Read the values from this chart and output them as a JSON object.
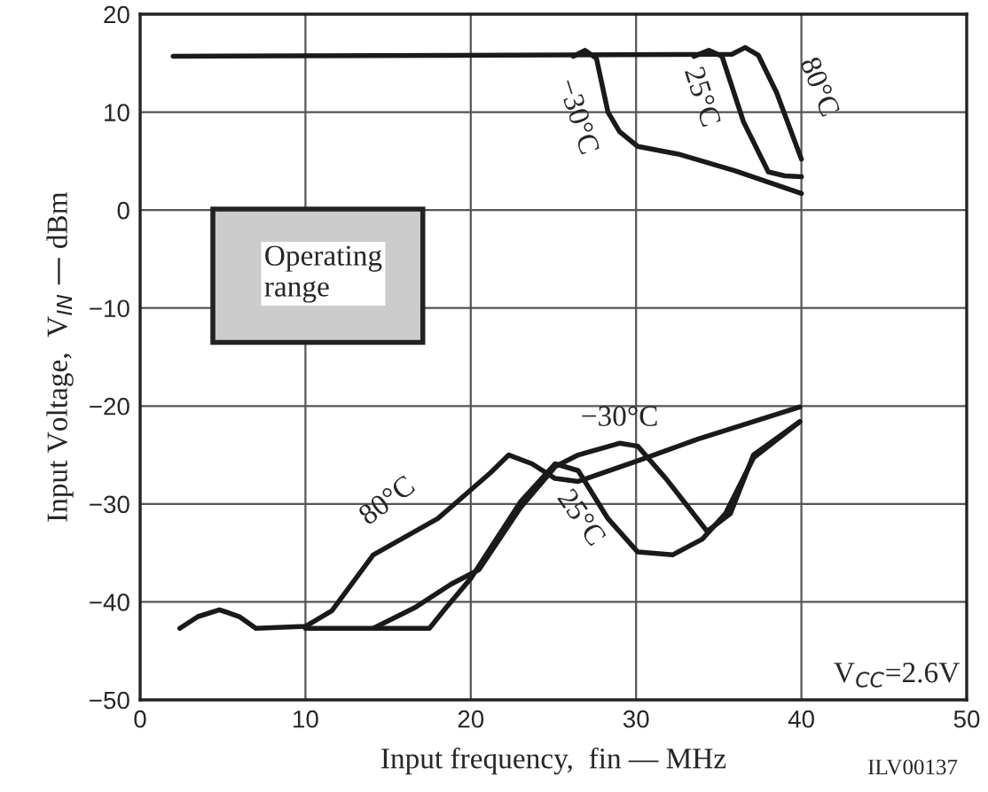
{
  "chart_data": {
    "type": "line",
    "xlabel": "Input frequency,  fin — MHz",
    "ylabel": "Input Voltage,  V$_{IN}$ — dBm",
    "xlim": [
      0,
      50
    ],
    "ylim": [
      -50,
      20
    ],
    "xticks": [
      0,
      10,
      20,
      30,
      40,
      50
    ],
    "yticks": [
      -50,
      -40,
      -30,
      -20,
      -10,
      0,
      10,
      20
    ],
    "grid": true,
    "series": [
      {
        "color": "#1a1a1a",
        "x": [
          2.4,
          3.5,
          4.8,
          6,
          7.0,
          10,
          11.6,
          14.1,
          18.0,
          21.2,
          22.3,
          23.7,
          25.1,
          26.5,
          30.1,
          33.7,
          39.9
        ],
        "values": [
          -42.7,
          -41.5,
          -40.8,
          -41.5,
          -42.7,
          -42.5,
          -40.9,
          -35.2,
          -31.5,
          -26.8,
          -25.0,
          -25.9,
          -27.4,
          -27.7,
          -25.6,
          -23.4,
          -20.1
        ]
      },
      {
        "color": "#1a1a1a",
        "x": [
          14.1,
          16.6,
          18.8,
          20.5,
          23.0,
          25.1,
          26.5,
          29.0,
          30.1,
          31.8,
          34.3,
          35.7,
          37.1,
          39.9
        ],
        "values": [
          -42.7,
          -40.6,
          -38.2,
          -36.7,
          -30.4,
          -26.2,
          -25.0,
          -23.8,
          -24.1,
          -27.4,
          -32.8,
          -31.0,
          -25.0,
          -21.6
        ]
      },
      {
        "color": "#1a1a1a",
        "x": [
          10,
          17.5,
          18.5,
          20.0,
          23.0,
          25.1,
          26.5,
          28.3,
          30.1,
          32.2,
          34.0,
          35.4,
          37.1,
          39.9
        ],
        "values": [
          -42.7,
          -42.7,
          -40.6,
          -37.6,
          -29.8,
          -25.9,
          -26.6,
          -31.5,
          -34.9,
          -35.2,
          -33.6,
          -31.0,
          -25.3,
          -21.6
        ]
      },
      {
        "color": "#1a1a1a",
        "x": [
          2,
          35.8,
          36.6,
          37.4,
          38.5,
          40
        ],
        "values": [
          15.7,
          15.9,
          16.6,
          15.8,
          12,
          5.2
        ]
      },
      {
        "color": "#1a1a1a",
        "x": [
          26.2,
          26.9,
          27.6,
          28.3,
          29.0,
          30.1,
          32.6,
          36,
          40
        ],
        "values": [
          15.7,
          16.3,
          15.5,
          10,
          8,
          6.5,
          5.7,
          4,
          1.7
        ]
      },
      {
        "color": "#1a1a1a",
        "x": [
          33.5,
          34.4,
          35.2,
          36.5,
          38,
          39,
          40
        ],
        "values": [
          15.7,
          16.3,
          15.7,
          9,
          3.9,
          3.5,
          3.4
        ]
      }
    ],
    "annotations": [
      "80°C",
      "−30°C",
      "25°C",
      "80°C",
      "−30°C",
      "25°C",
      "Operating\nrange",
      "V$_{CC}$=2.6V",
      "ILV00137"
    ]
  }
}
